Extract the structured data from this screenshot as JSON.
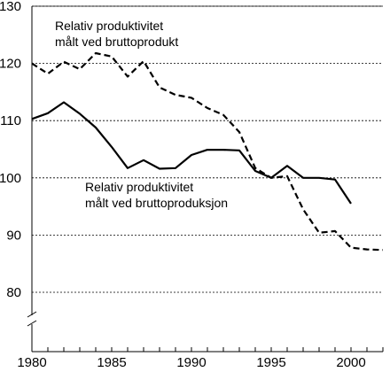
{
  "chart_data": {
    "type": "line",
    "title": "",
    "xlabel": "",
    "ylabel": "",
    "xlim": [
      1980,
      2002
    ],
    "ylim": [
      80,
      130
    ],
    "x_ticks": [
      "1980",
      "1985",
      "1990",
      "1995",
      "2000"
    ],
    "y_ticks": [
      "80",
      "90",
      "100",
      "110",
      "120",
      "130"
    ],
    "grid": "horizontal-dashed",
    "axis_break": "y-axis below 80",
    "annotations": [
      [
        "Relativ produktivitet",
        "målt ved bruttoprodukt"
      ],
      [
        "Relativ produktivitet",
        "målt ved bruttoproduksjon"
      ]
    ],
    "series": [
      {
        "style": "dashed",
        "color": "#000000",
        "x": [
          1980,
          1981,
          1982,
          1983,
          1984,
          1985,
          1986,
          1987,
          1988,
          1989,
          1990,
          1991,
          1992,
          1993,
          1994,
          1995,
          1996,
          1997,
          1998,
          1999,
          2000,
          2001,
          2002
        ],
        "y": [
          120.0,
          118.2,
          120.3,
          119.0,
          121.8,
          121.2,
          117.7,
          120.4,
          115.8,
          114.5,
          114.0,
          112.2,
          111.0,
          108.0,
          101.7,
          100.0,
          100.3,
          94.5,
          90.4,
          90.7,
          87.8,
          87.5,
          87.4
        ]
      },
      {
        "style": "solid",
        "color": "#000000",
        "x": [
          1980,
          1981,
          1982,
          1983,
          1984,
          1985,
          1986,
          1987,
          1988,
          1989,
          1990,
          1991,
          1992,
          1993,
          1994,
          1995,
          1996,
          1997,
          1998,
          1999,
          2000
        ],
        "y": [
          110.3,
          111.3,
          113.2,
          111.2,
          108.8,
          105.4,
          101.7,
          103.1,
          101.6,
          101.7,
          104.0,
          104.9,
          104.9,
          104.8,
          101.2,
          100.0,
          102.1,
          100.0,
          100.0,
          99.7,
          95.5
        ]
      }
    ]
  }
}
